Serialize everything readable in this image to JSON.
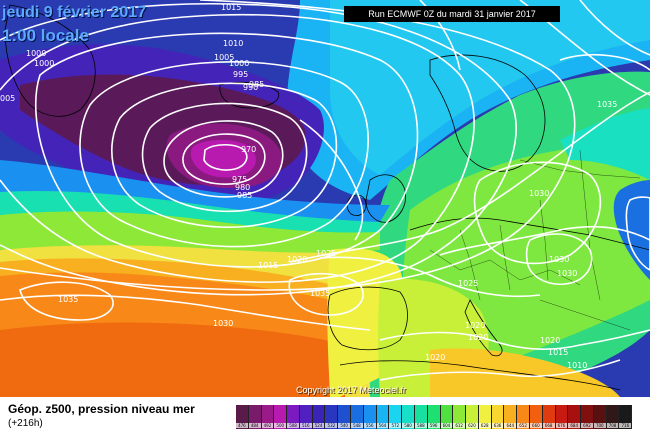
{
  "map": {
    "date_title": "jeudi 9 février 2017",
    "time_title": "1:00 locale",
    "run_info": "Run ECMWF 0Z du mardi 31 janvier 2017",
    "copyright": "Copyright 2017 Meteociel.fr",
    "isobar_labels": [
      {
        "id": "w1015",
        "text": "1015"
      },
      {
        "id": "w1010",
        "text": "1010"
      },
      {
        "id": "w1005",
        "text": "1005"
      },
      {
        "id": "w1000",
        "text": "1000"
      },
      {
        "id": "w1000b",
        "text": "1000"
      },
      {
        "id": "w1000c",
        "text": "1000"
      },
      {
        "id": "w995",
        "text": "995"
      },
      {
        "id": "w990",
        "text": "990"
      },
      {
        "id": "w985",
        "text": "985"
      },
      {
        "id": "w005",
        "text": "005"
      },
      {
        "id": "w970",
        "text": "970"
      },
      {
        "id": "w975",
        "text": "975"
      },
      {
        "id": "w980",
        "text": "980"
      },
      {
        "id": "w985b",
        "text": "985"
      },
      {
        "id": "e1035",
        "text": "1035"
      },
      {
        "id": "e1030",
        "text": "1030"
      },
      {
        "id": "e1030b",
        "text": "1030"
      },
      {
        "id": "e1030c",
        "text": "1030"
      },
      {
        "id": "c1015",
        "text": "1015"
      },
      {
        "id": "c1020",
        "text": "1020"
      },
      {
        "id": "c1025",
        "text": "1025"
      },
      {
        "id": "c1035",
        "text": "1035"
      },
      {
        "id": "c1025b",
        "text": "1025"
      },
      {
        "id": "s1035",
        "text": "1035"
      },
      {
        "id": "s1030",
        "text": "1030"
      },
      {
        "id": "s1020",
        "text": "1020"
      },
      {
        "id": "s1020b",
        "text": "1020"
      },
      {
        "id": "s1020c",
        "text": "1020"
      },
      {
        "id": "s1020d",
        "text": "1020"
      },
      {
        "id": "s1015",
        "text": "1015"
      },
      {
        "id": "s1010",
        "text": "1010"
      }
    ]
  },
  "legend": {
    "title": "Géop. z500, pression niveau mer",
    "subtitle": "(+216h)",
    "colors": [
      {
        "color": "#5a1a4a",
        "label": "476"
      },
      {
        "color": "#7a1a6a",
        "label": "484"
      },
      {
        "color": "#9a1a8a",
        "label": "492"
      },
      {
        "color": "#b81ab0",
        "label": "500"
      },
      {
        "color": "#7a1ac0",
        "label": "508"
      },
      {
        "color": "#5020c0",
        "label": "516"
      },
      {
        "color": "#3a24b8",
        "label": "524"
      },
      {
        "color": "#2a36c0",
        "label": "532"
      },
      {
        "color": "#1e50d0",
        "label": "540"
      },
      {
        "color": "#1a6ee0",
        "label": "548"
      },
      {
        "color": "#1a90f0",
        "label": "556"
      },
      {
        "color": "#18b4f4",
        "label": "564"
      },
      {
        "color": "#1ad4f0",
        "label": "572"
      },
      {
        "color": "#18e0c8",
        "label": "580"
      },
      {
        "color": "#18e0a0",
        "label": "588"
      },
      {
        "color": "#1ee070",
        "label": "596"
      },
      {
        "color": "#50e040",
        "label": "604"
      },
      {
        "color": "#8ee838",
        "label": "612"
      },
      {
        "color": "#c8f038",
        "label": "620"
      },
      {
        "color": "#f0f040",
        "label": "628"
      },
      {
        "color": "#f8d830",
        "label": "636"
      },
      {
        "color": "#f8b020",
        "label": "644"
      },
      {
        "color": "#f88818",
        "label": "652"
      },
      {
        "color": "#f06010",
        "label": "660"
      },
      {
        "color": "#e03a10",
        "label": "668"
      },
      {
        "color": "#c81a10",
        "label": "676"
      },
      {
        "color": "#a81010",
        "label": "684"
      },
      {
        "color": "#801010",
        "label": "692"
      },
      {
        "color": "#581010",
        "label": "700"
      },
      {
        "color": "#301818",
        "label": "708"
      },
      {
        "color": "#1a1a1a",
        "label": "716"
      }
    ]
  }
}
